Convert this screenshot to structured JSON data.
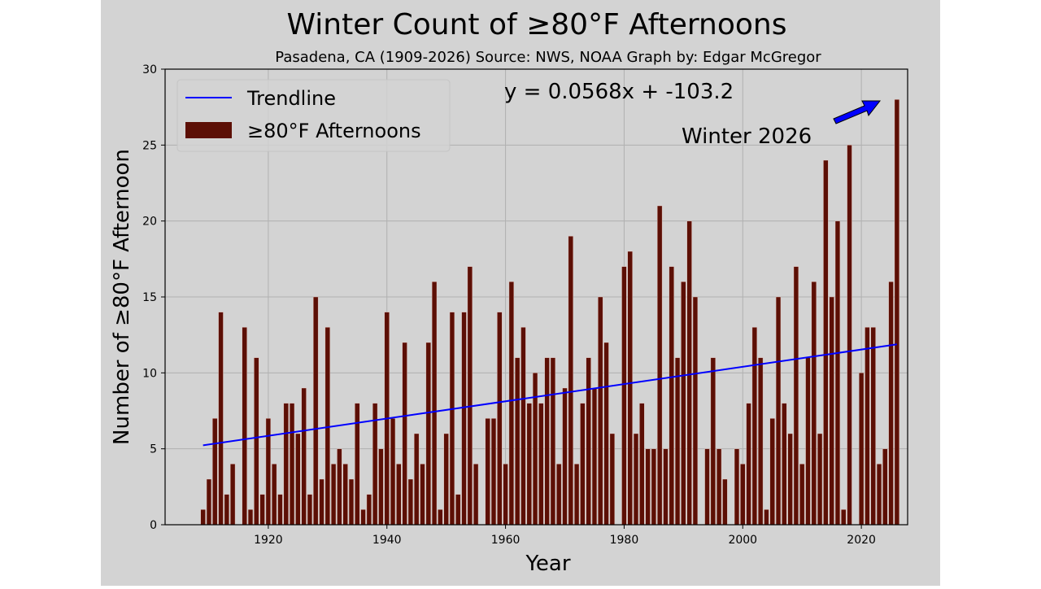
{
  "chart_data": {
    "type": "bar",
    "title": "Winter Count of ≥80°F Afternoons",
    "subtitle": "Pasadena, CA (1909-2026) Source: NWS, NOAA Graph by: Edgar McGregor",
    "xlabel": "Year",
    "ylabel": "Number of ≥80°F Afternoon",
    "xlim": [
      1902.6,
      2027.8
    ],
    "ylim": [
      0,
      30
    ],
    "xticks": [
      1920,
      1940,
      1960,
      1980,
      2000,
      2020
    ],
    "yticks": [
      0,
      5,
      10,
      15,
      20,
      25,
      30
    ],
    "grid": true,
    "legend_position": "top-left",
    "bar_color": "#5c0f05",
    "trend_color": "#0000ff",
    "arrow_color": "#0000ff",
    "years_start": 1909,
    "values": [
      1,
      3,
      7,
      14,
      2,
      4,
      0,
      13,
      1,
      11,
      2,
      7,
      4,
      2,
      8,
      8,
      6,
      9,
      2,
      15,
      3,
      13,
      4,
      5,
      4,
      3,
      8,
      1,
      2,
      8,
      5,
      14,
      7,
      4,
      12,
      3,
      6,
      4,
      12,
      16,
      1,
      6,
      14,
      2,
      14,
      17,
      4,
      0,
      7,
      7,
      14,
      4,
      16,
      11,
      13,
      8,
      10,
      8,
      11,
      11,
      4,
      9,
      19,
      4,
      8,
      11,
      9,
      15,
      12,
      6,
      0,
      17,
      18,
      6,
      8,
      5,
      5,
      21,
      5,
      17,
      11,
      16,
      20,
      15,
      0,
      5,
      11,
      5,
      3,
      0,
      5,
      4,
      8,
      13,
      11,
      1,
      7,
      15,
      8,
      6,
      17,
      4,
      11,
      16,
      6,
      24,
      15,
      20,
      1,
      25,
      0,
      10,
      13,
      13,
      4,
      5,
      16,
      28
    ],
    "series": [
      {
        "name": "≥80°F Afternoons",
        "kind": "bar"
      },
      {
        "name": "Trendline",
        "kind": "line",
        "slope": 0.0568,
        "intercept": -103.2
      }
    ],
    "annotations": {
      "equation": "y = 0.0568x + -103.2",
      "callout": "Winter 2026"
    }
  }
}
